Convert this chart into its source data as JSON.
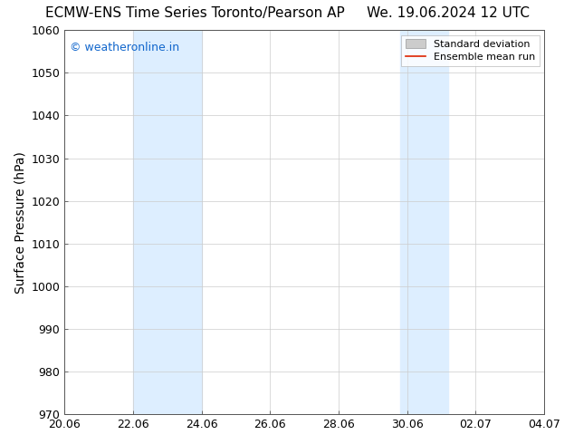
{
  "title_left": "ECMW-ENS Time Series Toronto/Pearson AP",
  "title_right": "We. 19.06.2024 12 UTC",
  "ylabel": "Surface Pressure (hPa)",
  "ylim": [
    970,
    1060
  ],
  "yticks": [
    970,
    980,
    990,
    1000,
    1010,
    1020,
    1030,
    1040,
    1050,
    1060
  ],
  "xtick_labels": [
    "20.06",
    "22.06",
    "24.06",
    "26.06",
    "28.06",
    "30.06",
    "02.07",
    "04.07"
  ],
  "xtick_positions": [
    0,
    2,
    4,
    6,
    8,
    10,
    12,
    14
  ],
  "xlim": [
    0,
    14
  ],
  "shaded_bands": [
    {
      "x_start": 2.0,
      "x_end": 4.0
    },
    {
      "x_start": 9.8,
      "x_end": 11.2
    }
  ],
  "shade_color": "#ddeeff",
  "watermark_text": "© weatheronline.in",
  "watermark_color": "#1166cc",
  "legend_std_dev_color": "#cccccc",
  "legend_mean_color": "#dd2200",
  "background_color": "#ffffff",
  "grid_color": "#cccccc",
  "grid_linewidth": 0.5,
  "title_fontsize": 11,
  "axis_label_fontsize": 10,
  "tick_fontsize": 9,
  "watermark_fontsize": 9,
  "legend_fontsize": 8
}
